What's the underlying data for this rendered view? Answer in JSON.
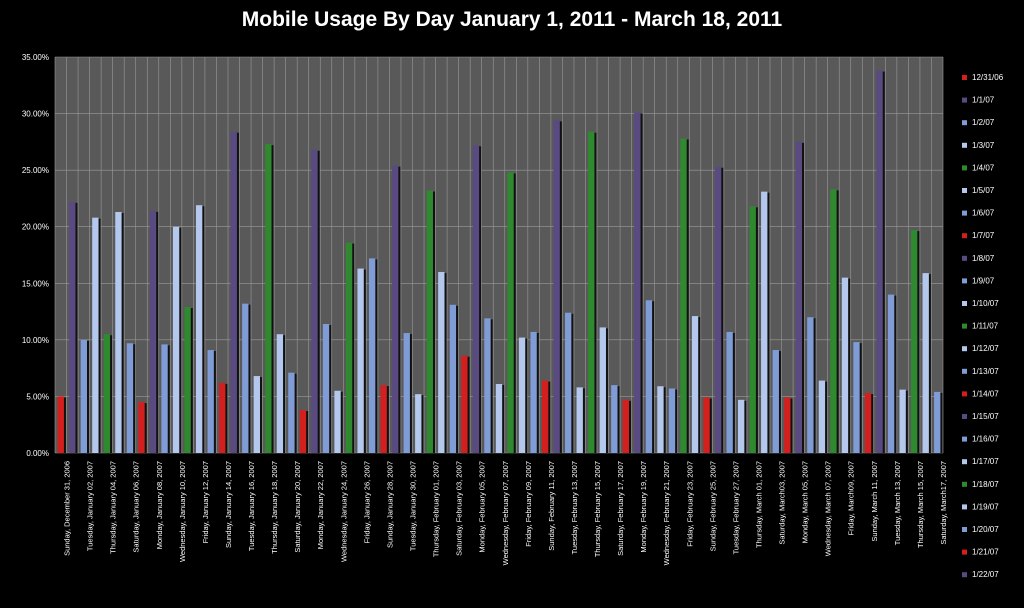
{
  "chart_data": {
    "type": "bar",
    "title": "Mobile Usage By Day January 1, 2011 - March 18, 2011",
    "xlabel": "",
    "ylabel": "",
    "ylim": [
      0,
      0.35
    ],
    "yticks": [
      "0.00%",
      "5.00%",
      "10.00%",
      "15.00%",
      "20.00%",
      "25.00%",
      "30.00%",
      "35.00%"
    ],
    "grid": true,
    "legend_position": "right",
    "colors": {
      "background": "#000000",
      "plot_area": "#595959",
      "gridline": "#9a9a9a",
      "red": "#d41f1f",
      "purple": "#5a4a82",
      "blue": "#7f9cd6",
      "lightblue": "#b4c8ee",
      "green": "#2f8a2f"
    },
    "categories": [
      "Sunday, December 31, 2006",
      "Tuesday, January 02, 2007",
      "Thursday, January 04, 2007",
      "Saturday, January 06, 2007",
      "Monday, January 08, 2007",
      "Wednesday, January 10, 2007",
      "Friday, January 12, 2007",
      "Sunday, January 14, 2007",
      "Tuesday, January 16, 2007",
      "Thursday, January 18, 2007",
      "Saturday, January 20, 2007",
      "Monday, January 22, 2007",
      "Wednesday, January 24, 2007",
      "Friday, January 26, 2007",
      "Sunday, January 28, 2007",
      "Tuesday, January 30, 2007",
      "Thursday, February 01, 2007",
      "Saturday, February 03, 2007",
      "Monday, February 05, 2007",
      "Wednesday, February 07, 2007",
      "Friday, February 09, 2007",
      "Sunday, February 11, 2007",
      "Tuesday, February 13, 2007",
      "Thursday, February 15, 2007",
      "Saturday, February 17, 2007",
      "Monday, February 19, 2007",
      "Wednesday, February 21, 2007",
      "Friday, February 23, 2007",
      "Sunday, February 25, 2007",
      "Tuesday, February 27, 2007",
      "Thursday, March 01, 2007",
      "Saturday, March03, 2007",
      "Monday, March 05, 2007",
      "Wednesday, March 07, 2007",
      "Friday, March09, 2007",
      "Sunday, March 11, 2007",
      "Tuesday, March 13, 2007",
      "Thursday, March 15, 2007",
      "Saturday, March17, 2007"
    ],
    "bars": [
      {
        "value": 0.05,
        "color": "red"
      },
      {
        "value": 0.222,
        "color": "purple"
      },
      {
        "value": 0.1,
        "color": "blue"
      },
      {
        "value": 0.208,
        "color": "lightblue"
      },
      {
        "value": 0.105,
        "color": "green"
      },
      {
        "value": 0.213,
        "color": "lightblue"
      },
      {
        "value": 0.097,
        "color": "blue"
      },
      {
        "value": 0.045,
        "color": "red"
      },
      {
        "value": 0.214,
        "color": "purple"
      },
      {
        "value": 0.096,
        "color": "blue"
      },
      {
        "value": 0.2,
        "color": "lightblue"
      },
      {
        "value": 0.129,
        "color": "green"
      },
      {
        "value": 0.219,
        "color": "lightblue"
      },
      {
        "value": 0.091,
        "color": "blue"
      },
      {
        "value": 0.062,
        "color": "red"
      },
      {
        "value": 0.284,
        "color": "purple"
      },
      {
        "value": 0.132,
        "color": "blue"
      },
      {
        "value": 0.068,
        "color": "lightblue"
      },
      {
        "value": 0.273,
        "color": "green"
      },
      {
        "value": 0.105,
        "color": "lightblue"
      },
      {
        "value": 0.071,
        "color": "blue"
      },
      {
        "value": 0.038,
        "color": "red"
      },
      {
        "value": 0.268,
        "color": "purple"
      },
      {
        "value": 0.114,
        "color": "blue"
      },
      {
        "value": 0.055,
        "color": "lightblue"
      },
      {
        "value": 0.186,
        "color": "green"
      },
      {
        "value": 0.163,
        "color": "lightblue"
      },
      {
        "value": 0.172,
        "color": "blue"
      },
      {
        "value": 0.06,
        "color": "red"
      },
      {
        "value": 0.254,
        "color": "purple"
      },
      {
        "value": 0.106,
        "color": "blue"
      },
      {
        "value": 0.052,
        "color": "lightblue"
      },
      {
        "value": 0.232,
        "color": "green"
      },
      {
        "value": 0.16,
        "color": "lightblue"
      },
      {
        "value": 0.131,
        "color": "blue"
      },
      {
        "value": 0.086,
        "color": "red"
      },
      {
        "value": 0.272,
        "color": "purple"
      },
      {
        "value": 0.119,
        "color": "blue"
      },
      {
        "value": 0.061,
        "color": "lightblue"
      },
      {
        "value": 0.248,
        "color": "green"
      },
      {
        "value": 0.102,
        "color": "lightblue"
      },
      {
        "value": 0.107,
        "color": "blue"
      },
      {
        "value": 0.064,
        "color": "red"
      },
      {
        "value": 0.294,
        "color": "purple"
      },
      {
        "value": 0.124,
        "color": "blue"
      },
      {
        "value": 0.058,
        "color": "lightblue"
      },
      {
        "value": 0.284,
        "color": "green"
      },
      {
        "value": 0.111,
        "color": "lightblue"
      },
      {
        "value": 0.06,
        "color": "blue"
      },
      {
        "value": 0.047,
        "color": "red"
      },
      {
        "value": 0.301,
        "color": "purple"
      },
      {
        "value": 0.135,
        "color": "blue"
      },
      {
        "value": 0.059,
        "color": "lightblue"
      },
      {
        "value": 0.057,
        "color": "blue"
      },
      {
        "value": 0.278,
        "color": "green"
      },
      {
        "value": 0.121,
        "color": "lightblue"
      },
      {
        "value": 0.049,
        "color": "red"
      },
      {
        "value": 0.253,
        "color": "purple"
      },
      {
        "value": 0.107,
        "color": "blue"
      },
      {
        "value": 0.047,
        "color": "lightblue"
      },
      {
        "value": 0.218,
        "color": "green"
      },
      {
        "value": 0.231,
        "color": "lightblue"
      },
      {
        "value": 0.091,
        "color": "blue"
      },
      {
        "value": 0.049,
        "color": "red"
      },
      {
        "value": 0.275,
        "color": "purple"
      },
      {
        "value": 0.12,
        "color": "blue"
      },
      {
        "value": 0.064,
        "color": "lightblue"
      },
      {
        "value": 0.233,
        "color": "green"
      },
      {
        "value": 0.155,
        "color": "lightblue"
      },
      {
        "value": 0.098,
        "color": "blue"
      },
      {
        "value": 0.053,
        "color": "red"
      },
      {
        "value": 0.338,
        "color": "purple"
      },
      {
        "value": 0.14,
        "color": "blue"
      },
      {
        "value": 0.056,
        "color": "lightblue"
      },
      {
        "value": 0.197,
        "color": "green"
      },
      {
        "value": 0.159,
        "color": "lightblue"
      },
      {
        "value": 0.054,
        "color": "blue"
      }
    ],
    "legend": [
      {
        "label": "12/31/06",
        "color": "red"
      },
      {
        "label": "1/1/07",
        "color": "purple"
      },
      {
        "label": "1/2/07",
        "color": "blue"
      },
      {
        "label": "1/3/07",
        "color": "lightblue"
      },
      {
        "label": "1/4/07",
        "color": "green"
      },
      {
        "label": "1/5/07",
        "color": "lightblue"
      },
      {
        "label": "1/6/07",
        "color": "blue"
      },
      {
        "label": "1/7/07",
        "color": "red"
      },
      {
        "label": "1/8/07",
        "color": "purple"
      },
      {
        "label": "1/9/07",
        "color": "blue"
      },
      {
        "label": "1/10/07",
        "color": "lightblue"
      },
      {
        "label": "1/11/07",
        "color": "green"
      },
      {
        "label": "1/12/07",
        "color": "lightblue"
      },
      {
        "label": "1/13/07",
        "color": "blue"
      },
      {
        "label": "1/14/07",
        "color": "red"
      },
      {
        "label": "1/15/07",
        "color": "purple"
      },
      {
        "label": "1/16/07",
        "color": "blue"
      },
      {
        "label": "1/17/07",
        "color": "lightblue"
      },
      {
        "label": "1/18/07",
        "color": "green"
      },
      {
        "label": "1/19/07",
        "color": "lightblue"
      },
      {
        "label": "1/20/07",
        "color": "blue"
      },
      {
        "label": "1/21/07",
        "color": "red"
      },
      {
        "label": "1/22/07",
        "color": "purple"
      }
    ]
  }
}
